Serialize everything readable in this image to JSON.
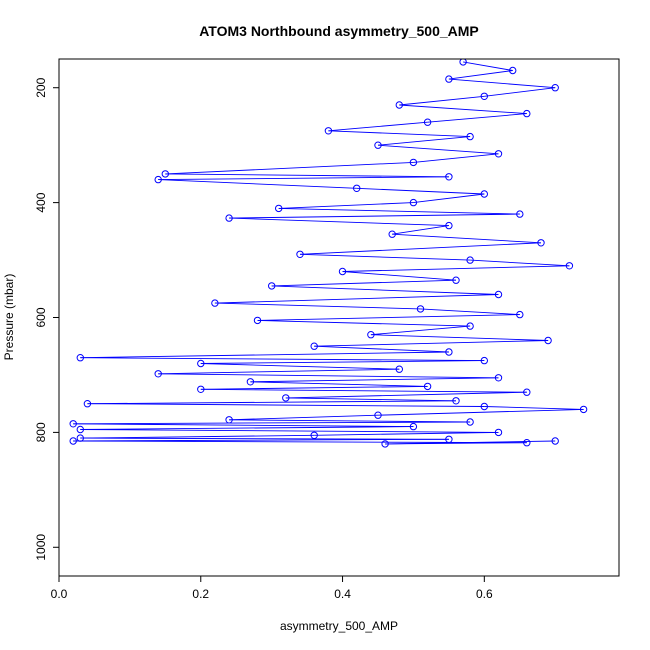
{
  "chart_data": {
    "type": "scatter",
    "title": "ATOM3 Northbound asymmetry_500_AMP",
    "xlabel": "asymmetry_500_AMP",
    "ylabel": "Pressure (mbar)",
    "xlim": [
      0,
      0.79
    ],
    "ylim": [
      1050,
      150
    ],
    "y_reversed": true,
    "x_ticks": [
      0.0,
      0.2,
      0.4,
      0.6
    ],
    "x_tick_labels": [
      "0.0",
      "0.2",
      "0.4",
      "0.6"
    ],
    "y_ticks": [
      200,
      400,
      600,
      800,
      1000
    ],
    "y_tick_labels": [
      "200",
      "400",
      "600",
      "800",
      "1000"
    ],
    "grid": false,
    "legend": "none",
    "marker": "open-circle",
    "connected": true,
    "series_color": "#0000ff",
    "series": [
      {
        "points": [
          [
            0.57,
            155
          ],
          [
            0.64,
            170
          ],
          [
            0.55,
            185
          ],
          [
            0.7,
            200
          ],
          [
            0.6,
            215
          ],
          [
            0.48,
            230
          ],
          [
            0.66,
            245
          ],
          [
            0.52,
            260
          ],
          [
            0.38,
            275
          ],
          [
            0.58,
            285
          ],
          [
            0.45,
            300
          ],
          [
            0.62,
            315
          ],
          [
            0.5,
            330
          ],
          [
            0.15,
            350
          ],
          [
            0.55,
            355
          ],
          [
            0.14,
            360
          ],
          [
            0.42,
            375
          ],
          [
            0.6,
            385
          ],
          [
            0.5,
            400
          ],
          [
            0.31,
            410
          ],
          [
            0.65,
            420
          ],
          [
            0.24,
            427
          ],
          [
            0.55,
            440
          ],
          [
            0.47,
            455
          ],
          [
            0.68,
            470
          ],
          [
            0.34,
            490
          ],
          [
            0.58,
            500
          ],
          [
            0.72,
            510
          ],
          [
            0.4,
            520
          ],
          [
            0.56,
            535
          ],
          [
            0.3,
            545
          ],
          [
            0.62,
            560
          ],
          [
            0.22,
            575
          ],
          [
            0.51,
            585
          ],
          [
            0.65,
            595
          ],
          [
            0.28,
            605
          ],
          [
            0.58,
            615
          ],
          [
            0.44,
            630
          ],
          [
            0.69,
            640
          ],
          [
            0.36,
            650
          ],
          [
            0.55,
            660
          ],
          [
            0.03,
            670
          ],
          [
            0.6,
            675
          ],
          [
            0.2,
            680
          ],
          [
            0.48,
            690
          ],
          [
            0.14,
            698
          ],
          [
            0.62,
            705
          ],
          [
            0.27,
            712
          ],
          [
            0.52,
            720
          ],
          [
            0.2,
            725
          ],
          [
            0.66,
            730
          ],
          [
            0.32,
            740
          ],
          [
            0.56,
            745
          ],
          [
            0.04,
            750
          ],
          [
            0.6,
            755
          ],
          [
            0.74,
            760
          ],
          [
            0.45,
            770
          ],
          [
            0.24,
            778
          ],
          [
            0.58,
            782
          ],
          [
            0.02,
            785
          ],
          [
            0.5,
            790
          ],
          [
            0.03,
            795
          ],
          [
            0.62,
            800
          ],
          [
            0.36,
            805
          ],
          [
            0.03,
            810
          ],
          [
            0.55,
            812
          ],
          [
            0.02,
            815
          ],
          [
            0.66,
            818
          ],
          [
            0.46,
            820
          ],
          [
            0.7,
            815
          ]
        ]
      }
    ]
  }
}
